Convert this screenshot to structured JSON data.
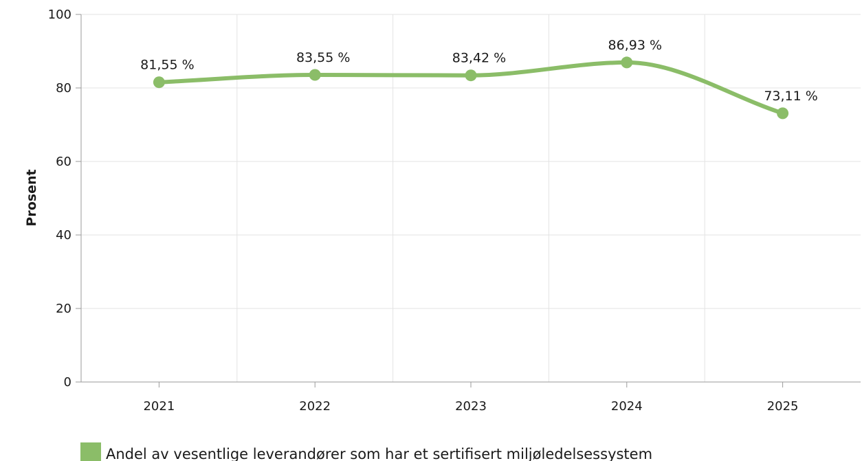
{
  "chart_data": {
    "type": "line",
    "categories": [
      "2021",
      "2022",
      "2023",
      "2024",
      "2025"
    ],
    "series": [
      {
        "name": "Andel av vesentlige leverandører som har et sertifisert miljøledelsessystem",
        "values": [
          81.55,
          83.55,
          83.42,
          86.93,
          73.11
        ],
        "data_labels": [
          "81,55 %",
          "83,55 %",
          "83,42 %",
          "86,93 %",
          "73,11 %"
        ],
        "color": "#8bbd68"
      }
    ],
    "title": "",
    "xlabel": "",
    "ylabel": "Prosent",
    "ylim": [
      0,
      100
    ],
    "yticks": [
      0,
      20,
      40,
      60,
      80,
      100
    ],
    "grid": true,
    "smooth": true,
    "legend_position": "bottom-left"
  }
}
